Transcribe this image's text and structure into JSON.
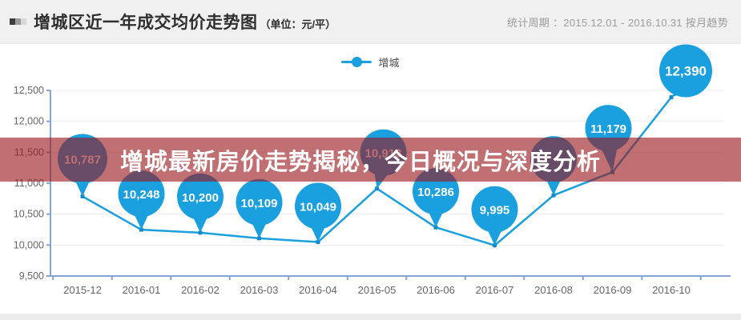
{
  "header": {
    "title": "增城区近一年成交均价走势图",
    "unit": "（单位：元/平）",
    "period": "统计周期 ：2015.12.01 - 2016.10.31 按月趋势"
  },
  "overlay": {
    "headline": "增城最新房价走势揭秘，今日概况与深度分析"
  },
  "icons": {
    "title_marker": "mini-bar-icon",
    "legend_marker": "line-dot-icon"
  },
  "chart_data": {
    "type": "line",
    "title": "增城区近一年成交均价走势图（单位：元/平）",
    "series_name": "增城",
    "categories": [
      "2015-12",
      "2016-01",
      "2016-02",
      "2016-03",
      "2016-04",
      "2016-05",
      "2016-06",
      "2016-07",
      "2016-08",
      "2016-09",
      "2016-10"
    ],
    "values": [
      10787,
      10248,
      10200,
      10109,
      10049,
      10913,
      10286,
      9995,
      10805,
      11179,
      12390
    ],
    "point_labels": [
      "10,787",
      "10,248",
      "10,200",
      "10,109",
      "10,049",
      "10,913",
      "10,286",
      "9,995",
      "",
      "11,179",
      "12,390"
    ],
    "obscured_points": [
      "2016-08"
    ],
    "ylim": [
      9500,
      12500
    ],
    "y_tick_step": 500,
    "y_ticks": [
      "9,500",
      "10,000",
      "10,500",
      "11,000",
      "11,500",
      "12,000",
      "12,500"
    ],
    "grid": true,
    "legend_position": "top-center",
    "colors": {
      "accent_blue": "#1a9fdf",
      "vertex_dot": "#1589c9",
      "axis_blue": "#83a6d4",
      "gridline": "#ededed",
      "axis_label": "#666666",
      "marker_text": "#ffffff",
      "overlay_red": "rgba(153,24,28,0.62)",
      "headline_text": "#ffffff"
    }
  }
}
